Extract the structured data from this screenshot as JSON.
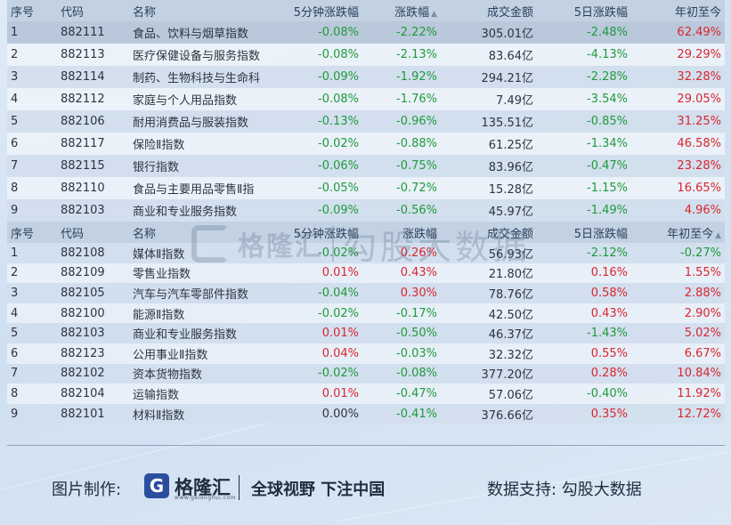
{
  "table1": {
    "headers": [
      "序号",
      "代码",
      "名称",
      "5分钟涨跌幅",
      "涨跌幅",
      "成交金额",
      "5日涨跌幅",
      "年初至今"
    ],
    "sort_icon": "▲",
    "rows": [
      [
        "1",
        "882111",
        "食品、饮料与烟草指数",
        "-0.08%",
        "-2.22%",
        "305.01亿",
        "-2.48%",
        "62.49%"
      ],
      [
        "2",
        "882113",
        "医疗保健设备与服务指数",
        "-0.08%",
        "-2.13%",
        "83.64亿",
        "-4.13%",
        "29.29%"
      ],
      [
        "3",
        "882114",
        "制药、生物科技与生命科",
        "-0.09%",
        "-1.92%",
        "294.21亿",
        "-2.28%",
        "32.28%"
      ],
      [
        "4",
        "882112",
        "家庭与个人用品指数",
        "-0.08%",
        "-1.76%",
        "7.49亿",
        "-3.54%",
        "29.05%"
      ],
      [
        "5",
        "882106",
        "耐用消费品与服装指数",
        "-0.13%",
        "-0.96%",
        "135.51亿",
        "-0.85%",
        "31.25%"
      ],
      [
        "6",
        "882117",
        "保险Ⅱ指数",
        "-0.02%",
        "-0.88%",
        "61.25亿",
        "-1.34%",
        "46.58%"
      ],
      [
        "7",
        "882115",
        "银行指数",
        "-0.06%",
        "-0.75%",
        "83.96亿",
        "-0.47%",
        "23.28%"
      ],
      [
        "8",
        "882110",
        "食品与主要用品零售Ⅱ指",
        "-0.05%",
        "-0.72%",
        "15.28亿",
        "-1.15%",
        "16.65%"
      ],
      [
        "9",
        "882103",
        "商业和专业服务指数",
        "-0.09%",
        "-0.56%",
        "45.97亿",
        "-1.49%",
        "4.96%"
      ]
    ],
    "colors": [
      [
        "",
        "",
        "",
        "green",
        "green",
        "",
        "green",
        "red"
      ]
    ]
  },
  "table2": {
    "headers": [
      "序号",
      "代码",
      "名称",
      "5分钟涨跌幅",
      "涨跌幅",
      "成交金额",
      "5日涨跌幅",
      "年初至今"
    ],
    "sort_icon": "▲",
    "rows": [
      [
        "1",
        "882108",
        "媒体Ⅱ指数",
        "-0.02%",
        "0.26%",
        "56.93亿",
        "-2.12%",
        "-0.27%"
      ],
      [
        "2",
        "882109",
        "零售业指数",
        "0.01%",
        "0.43%",
        "21.80亿",
        "0.16%",
        "1.55%"
      ],
      [
        "3",
        "882105",
        "汽车与汽车零部件指数",
        "-0.04%",
        "0.30%",
        "78.76亿",
        "0.58%",
        "2.88%"
      ],
      [
        "4",
        "882100",
        "能源Ⅱ指数",
        "-0.02%",
        "-0.17%",
        "42.50亿",
        "0.43%",
        "2.90%"
      ],
      [
        "5",
        "882103",
        "商业和专业服务指数",
        "0.01%",
        "-0.50%",
        "46.37亿",
        "-1.43%",
        "5.02%"
      ],
      [
        "6",
        "882123",
        "公用事业Ⅱ指数",
        "0.04%",
        "-0.03%",
        "32.32亿",
        "0.55%",
        "6.67%"
      ],
      [
        "7",
        "882102",
        "资本货物指数",
        "-0.02%",
        "-0.08%",
        "377.20亿",
        "0.28%",
        "10.84%"
      ],
      [
        "8",
        "882104",
        "运输指数",
        "0.01%",
        "-0.47%",
        "57.06亿",
        "-0.40%",
        "11.92%"
      ],
      [
        "9",
        "882101",
        "材料Ⅱ指数",
        "0.00%",
        "-0.41%",
        "376.66亿",
        "0.35%",
        "12.72%"
      ]
    ]
  },
  "watermark": {
    "brand": "格隆汇",
    "url": "www.gelonghui.com",
    "data_source": "勾股大数据"
  },
  "footer": {
    "maker_label": "图片制作:",
    "logo_letter": "G",
    "brand": "格隆汇",
    "url": "www.gelonghui.com",
    "slogan": "全球视野 下注中国",
    "support": "数据支持: 勾股大数据"
  },
  "colors": {
    "up": "#d9262f",
    "down": "#1f9a3c",
    "header_bg": "#c3d2e3"
  }
}
